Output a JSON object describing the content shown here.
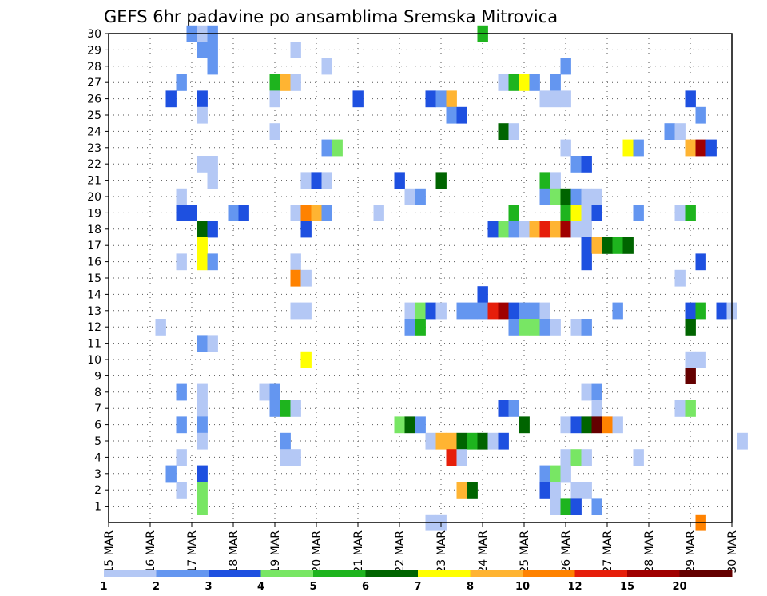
{
  "chart_data": {
    "type": "heatmap",
    "title": "GEFS 6hr padavine po ansamblima Sremska Mitrovica",
    "x_tick_labels": [
      "15 MAR",
      "16 MAR",
      "17 MAR",
      "18 MAR",
      "19 MAR",
      "20 MAR",
      "21 MAR",
      "22 MAR",
      "23 MAR",
      "24 MAR",
      "25 MAR",
      "26 MAR",
      "27 MAR",
      "28 MAR",
      "29 MAR",
      "30 MAR"
    ],
    "y_tick_labels": [
      "1",
      "2",
      "3",
      "4",
      "5",
      "6",
      "7",
      "8",
      "9",
      "10",
      "11",
      "12",
      "13",
      "14",
      "15",
      "16",
      "17",
      "18",
      "19",
      "20",
      "21",
      "22",
      "23",
      "24",
      "25",
      "26",
      "27",
      "28",
      "29",
      "30"
    ],
    "xlim_days": [
      0,
      15
    ],
    "ylim_members": [
      0,
      30
    ],
    "grid": true,
    "colorbar": {
      "labels": [
        "1",
        "2",
        "3",
        "4",
        "5",
        "6",
        "7",
        "8",
        "10",
        "12",
        "15",
        "20"
      ],
      "colors": [
        "#b4c8f5",
        "#6496f0",
        "#1e50e0",
        "#78e664",
        "#1eb41e",
        "#006400",
        "#ffff00",
        "#ffb432",
        "#ff8200",
        "#e61e0a",
        "#a00000",
        "#640000"
      ]
    },
    "cells": [
      [
        2.0,
        30,
        2
      ],
      [
        2.25,
        30,
        1
      ],
      [
        2.5,
        30,
        2
      ],
      [
        9.0,
        30,
        5
      ],
      [
        2.25,
        29,
        2
      ],
      [
        2.5,
        29,
        2
      ],
      [
        4.5,
        29,
        1
      ],
      [
        2.5,
        28,
        2
      ],
      [
        5.25,
        28,
        1
      ],
      [
        11.0,
        28,
        2
      ],
      [
        1.75,
        27,
        2
      ],
      [
        4.0,
        27,
        5
      ],
      [
        4.25,
        27,
        8
      ],
      [
        4.5,
        27,
        1
      ],
      [
        9.5,
        27,
        1
      ],
      [
        9.75,
        27,
        5
      ],
      [
        10.0,
        27,
        7
      ],
      [
        10.25,
        27,
        2
      ],
      [
        10.75,
        27,
        2
      ],
      [
        1.5,
        26,
        3
      ],
      [
        2.25,
        26,
        3
      ],
      [
        4.0,
        26,
        1
      ],
      [
        6.0,
        26,
        3
      ],
      [
        7.75,
        26,
        3
      ],
      [
        8.0,
        26,
        2
      ],
      [
        8.25,
        26,
        8
      ],
      [
        10.5,
        26,
        1
      ],
      [
        10.75,
        26,
        1
      ],
      [
        11.0,
        26,
        1
      ],
      [
        14.0,
        26,
        3
      ],
      [
        2.25,
        25,
        1
      ],
      [
        8.25,
        25,
        2
      ],
      [
        8.5,
        25,
        3
      ],
      [
        14.25,
        25,
        2
      ],
      [
        4.0,
        24,
        1
      ],
      [
        9.5,
        24,
        6
      ],
      [
        9.75,
        24,
        1
      ],
      [
        13.5,
        24,
        2
      ],
      [
        13.75,
        24,
        1
      ],
      [
        5.25,
        23,
        2
      ],
      [
        5.5,
        23,
        4
      ],
      [
        11.0,
        23,
        1
      ],
      [
        12.5,
        23,
        7
      ],
      [
        12.75,
        23,
        2
      ],
      [
        14.0,
        23,
        8
      ],
      [
        14.25,
        23,
        11
      ],
      [
        14.5,
        23,
        3
      ],
      [
        2.25,
        22,
        1
      ],
      [
        2.5,
        22,
        1
      ],
      [
        11.25,
        22,
        2
      ],
      [
        11.5,
        22,
        3
      ],
      [
        2.5,
        21,
        1
      ],
      [
        7.0,
        21,
        3
      ],
      [
        8.0,
        21,
        6
      ],
      [
        10.5,
        21,
        5
      ],
      [
        10.75,
        21,
        1
      ],
      [
        4.75,
        21,
        1
      ],
      [
        5.0,
        21,
        3
      ],
      [
        5.25,
        21,
        1
      ],
      [
        1.75,
        20,
        1
      ],
      [
        7.25,
        20,
        1
      ],
      [
        7.5,
        20,
        2
      ],
      [
        10.5,
        20,
        2
      ],
      [
        10.75,
        20,
        4
      ],
      [
        11.0,
        20,
        6
      ],
      [
        11.25,
        20,
        2
      ],
      [
        11.5,
        20,
        1
      ],
      [
        11.75,
        20,
        1
      ],
      [
        1.75,
        19,
        3
      ],
      [
        2.0,
        19,
        3
      ],
      [
        3.0,
        19,
        2
      ],
      [
        3.25,
        19,
        3
      ],
      [
        4.5,
        19,
        1
      ],
      [
        4.75,
        19,
        9
      ],
      [
        5.0,
        19,
        8
      ],
      [
        5.25,
        19,
        2
      ],
      [
        6.5,
        19,
        1
      ],
      [
        9.75,
        19,
        5
      ],
      [
        11.0,
        19,
        5
      ],
      [
        11.25,
        19,
        7
      ],
      [
        11.5,
        19,
        1
      ],
      [
        11.75,
        19,
        3
      ],
      [
        12.75,
        19,
        2
      ],
      [
        13.75,
        19,
        1
      ],
      [
        14.0,
        19,
        5
      ],
      [
        2.25,
        18,
        6
      ],
      [
        2.5,
        18,
        3
      ],
      [
        4.75,
        18,
        3
      ],
      [
        9.25,
        18,
        3
      ],
      [
        9.5,
        18,
        4
      ],
      [
        9.75,
        18,
        2
      ],
      [
        10.0,
        18,
        1
      ],
      [
        10.25,
        18,
        8
      ],
      [
        10.5,
        18,
        10
      ],
      [
        10.75,
        18,
        8
      ],
      [
        11.0,
        18,
        11
      ],
      [
        11.25,
        18,
        1
      ],
      [
        11.5,
        18,
        1
      ],
      [
        2.25,
        17,
        7
      ],
      [
        11.5,
        17,
        3
      ],
      [
        11.75,
        17,
        8
      ],
      [
        12.0,
        17,
        6
      ],
      [
        12.25,
        17,
        5
      ],
      [
        12.5,
        17,
        6
      ],
      [
        1.75,
        16,
        1
      ],
      [
        2.25,
        16,
        7
      ],
      [
        2.5,
        16,
        2
      ],
      [
        4.5,
        16,
        1
      ],
      [
        11.5,
        16,
        3
      ],
      [
        14.25,
        16,
        3
      ],
      [
        4.5,
        15,
        9
      ],
      [
        4.75,
        15,
        1
      ],
      [
        13.75,
        15,
        1
      ],
      [
        9.0,
        14,
        3
      ],
      [
        4.5,
        13,
        1
      ],
      [
        4.75,
        13,
        1
      ],
      [
        7.25,
        13,
        1
      ],
      [
        7.5,
        13,
        4
      ],
      [
        7.75,
        13,
        3
      ],
      [
        8.0,
        13,
        1
      ],
      [
        8.5,
        13,
        2
      ],
      [
        8.75,
        13,
        2
      ],
      [
        9.0,
        13,
        2
      ],
      [
        9.25,
        13,
        10
      ],
      [
        9.5,
        13,
        11
      ],
      [
        9.75,
        13,
        3
      ],
      [
        10.0,
        13,
        2
      ],
      [
        10.25,
        13,
        2
      ],
      [
        10.5,
        13,
        1
      ],
      [
        12.25,
        13,
        2
      ],
      [
        14.0,
        13,
        3
      ],
      [
        14.25,
        13,
        5
      ],
      [
        14.75,
        13,
        3
      ],
      [
        15.0,
        13,
        1
      ],
      [
        1.25,
        12,
        1
      ],
      [
        7.25,
        12,
        2
      ],
      [
        7.5,
        12,
        5
      ],
      [
        9.75,
        12,
        2
      ],
      [
        10.0,
        12,
        4
      ],
      [
        10.25,
        12,
        4
      ],
      [
        10.5,
        12,
        2
      ],
      [
        10.75,
        12,
        1
      ],
      [
        11.25,
        12,
        1
      ],
      [
        11.5,
        12,
        2
      ],
      [
        14.0,
        12,
        6
      ],
      [
        2.25,
        11,
        2
      ],
      [
        2.5,
        11,
        1
      ],
      [
        4.75,
        10,
        7
      ],
      [
        14.0,
        10,
        1
      ],
      [
        14.25,
        10,
        1
      ],
      [
        14.0,
        9,
        12
      ],
      [
        1.75,
        8,
        2
      ],
      [
        2.25,
        8,
        1
      ],
      [
        3.75,
        8,
        1
      ],
      [
        4.0,
        8,
        2
      ],
      [
        11.5,
        8,
        1
      ],
      [
        11.75,
        8,
        2
      ],
      [
        2.25,
        7,
        1
      ],
      [
        4.0,
        7,
        2
      ],
      [
        4.25,
        7,
        5
      ],
      [
        4.5,
        7,
        1
      ],
      [
        9.5,
        7,
        3
      ],
      [
        9.75,
        7,
        2
      ],
      [
        11.75,
        7,
        1
      ],
      [
        13.75,
        7,
        1
      ],
      [
        14.0,
        7,
        4
      ],
      [
        1.75,
        6,
        2
      ],
      [
        2.25,
        6,
        2
      ],
      [
        7.0,
        6,
        4
      ],
      [
        7.25,
        6,
        6
      ],
      [
        7.5,
        6,
        2
      ],
      [
        10.0,
        6,
        6
      ],
      [
        11.0,
        6,
        1
      ],
      [
        11.25,
        6,
        3
      ],
      [
        11.5,
        6,
        6
      ],
      [
        11.75,
        6,
        12
      ],
      [
        12.0,
        6,
        9
      ],
      [
        12.25,
        6,
        1
      ],
      [
        2.25,
        5,
        1
      ],
      [
        4.25,
        5,
        2
      ],
      [
        7.75,
        5,
        1
      ],
      [
        8.0,
        5,
        8
      ],
      [
        8.25,
        5,
        8
      ],
      [
        8.5,
        5,
        6
      ],
      [
        8.75,
        5,
        5
      ],
      [
        9.0,
        5,
        6
      ],
      [
        9.25,
        5,
        1
      ],
      [
        9.5,
        5,
        3
      ],
      [
        15.25,
        5,
        1
      ],
      [
        1.75,
        4,
        1
      ],
      [
        4.25,
        4,
        1
      ],
      [
        4.5,
        4,
        1
      ],
      [
        8.25,
        4,
        10
      ],
      [
        8.5,
        4,
        1
      ],
      [
        11.0,
        4,
        1
      ],
      [
        11.25,
        4,
        4
      ],
      [
        11.5,
        4,
        1
      ],
      [
        12.75,
        4,
        1
      ],
      [
        1.5,
        3,
        2
      ],
      [
        2.25,
        3,
        3
      ],
      [
        10.5,
        3,
        2
      ],
      [
        10.75,
        3,
        4
      ],
      [
        11.0,
        3,
        1
      ],
      [
        1.75,
        2,
        1
      ],
      [
        2.25,
        2,
        4
      ],
      [
        8.5,
        2,
        8
      ],
      [
        8.75,
        2,
        6
      ],
      [
        10.5,
        2,
        3
      ],
      [
        10.75,
        2,
        1
      ],
      [
        11.25,
        2,
        1
      ],
      [
        11.5,
        2,
        1
      ],
      [
        2.25,
        1,
        4
      ],
      [
        10.75,
        1,
        1
      ],
      [
        11.0,
        1,
        5
      ],
      [
        11.25,
        1,
        3
      ],
      [
        11.75,
        1,
        2
      ],
      [
        7.75,
        0,
        1
      ],
      [
        8.0,
        0,
        1
      ],
      [
        14.25,
        0,
        9
      ]
    ]
  }
}
